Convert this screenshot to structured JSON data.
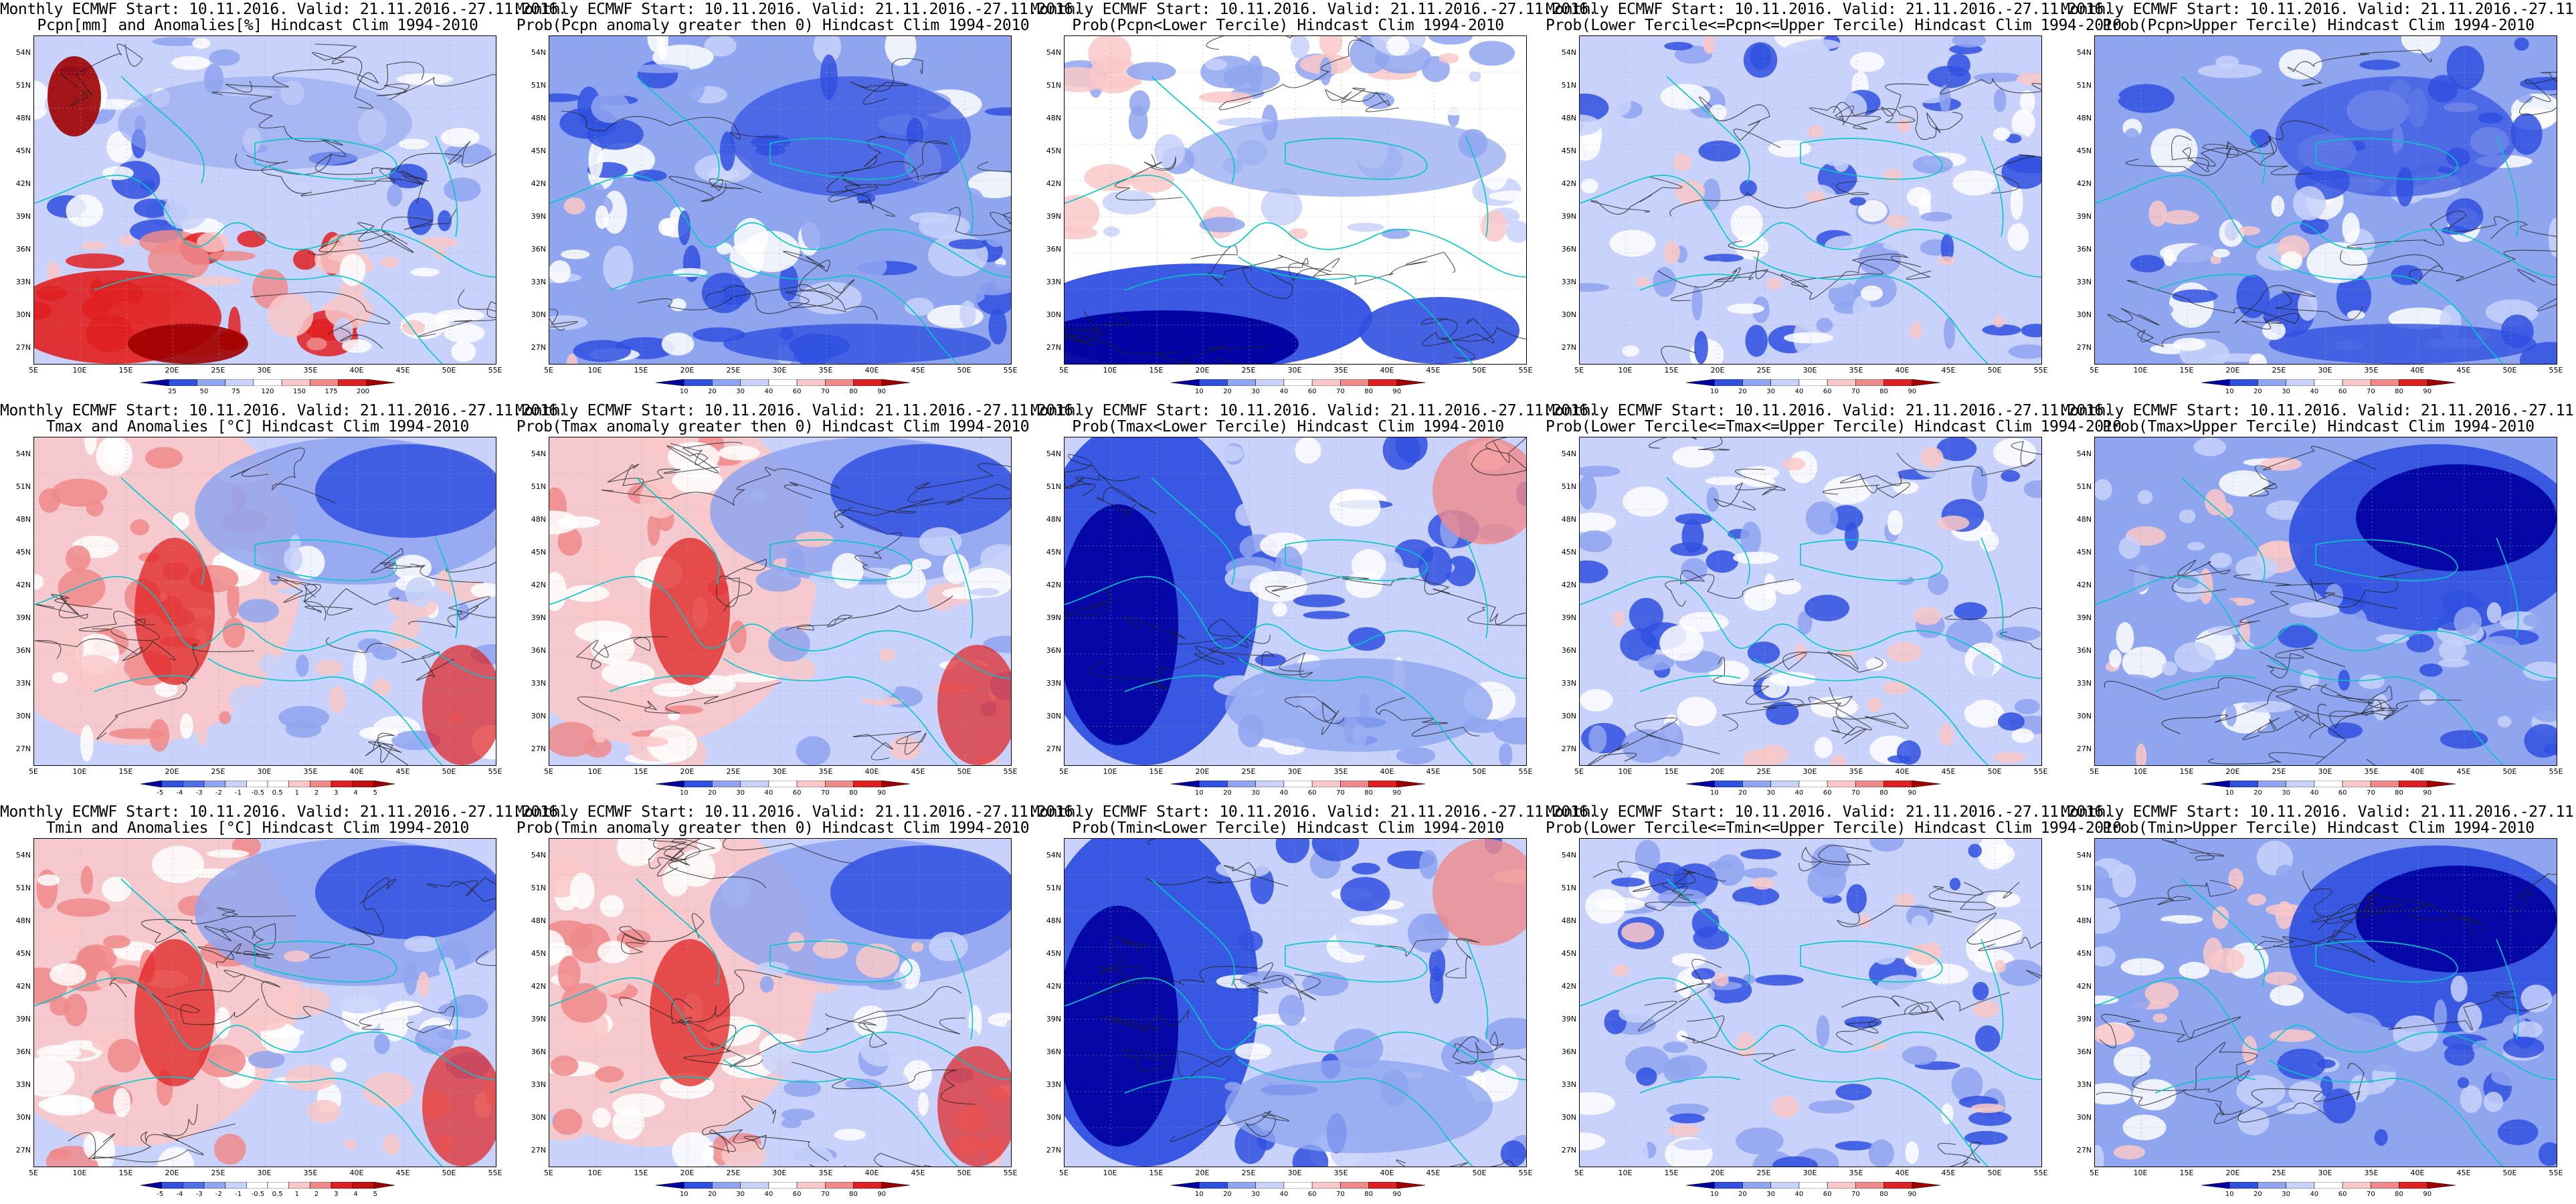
{
  "common": {
    "start_line": "Monthly ECMWF Start: 10.11.2016. Valid: 21.11.2016.-27.11.2016.",
    "lat_labels": [
      "54N",
      "51N",
      "48N",
      "45N",
      "42N",
      "39N",
      "36N",
      "33N",
      "30N",
      "27N"
    ],
    "lon_labels": [
      "5E",
      "10E",
      "15E",
      "20E",
      "25E",
      "30E",
      "35E",
      "40E",
      "45E",
      "50E",
      "55E"
    ]
  },
  "colors": {
    "deep_blue": "#0000a0",
    "blue": "#3050e0",
    "light_blue": "#8fa5f0",
    "pale_blue": "#c8d2fa",
    "white": "#ffffff",
    "pale_red": "#fac8c8",
    "light_red": "#f08a8a",
    "red": "#e02020",
    "deep_red": "#a00000",
    "coast": "#00c8c8",
    "contour": "#202020"
  },
  "colorbars": {
    "pcpn_anom": [
      "25",
      "50",
      "75",
      "120",
      "150",
      "175",
      "200"
    ],
    "temp_anom": [
      "-5",
      "-4",
      "-3",
      "-2",
      "-1",
      "-0.5",
      "0.5",
      "1",
      "2",
      "3",
      "4",
      "5"
    ],
    "prob": [
      "10",
      "20",
      "30",
      "40",
      "60",
      "70",
      "80",
      "90"
    ]
  },
  "panels": [
    {
      "id": "pcpn-anom",
      "row": 0,
      "col": 0,
      "line2": "Pcpn[mm] and Anomalies[%] Hindcast Clim 1994-2010",
      "cbar": "pcpn_anom",
      "pattern": "pcpn"
    },
    {
      "id": "pcpn-prob-gt0",
      "row": 0,
      "col": 1,
      "line2": "Prob(Pcpn anomaly greater then 0) Hindcast Clim 1994-2010",
      "cbar": "prob",
      "pattern": "blue"
    },
    {
      "id": "pcpn-prob-lower",
      "row": 0,
      "col": 2,
      "line2": "Prob(Pcpn<Lower Tercile) Hindcast Clim 1994-2010",
      "cbar": "prob",
      "pattern": "lower"
    },
    {
      "id": "pcpn-prob-middle",
      "row": 0,
      "col": 3,
      "line2": "Prob(Lower Tercile<=Pcpn<=Upper Tercile) Hindcast Clim 1994-2010",
      "cbar": "prob",
      "pattern": "middle"
    },
    {
      "id": "pcpn-prob-upper",
      "row": 0,
      "col": 4,
      "line2": "Prob(Pcpn>Upper Tercile) Hindcast Clim 1994-2010",
      "cbar": "prob",
      "pattern": "blue"
    },
    {
      "id": "tmax-anom",
      "row": 1,
      "col": 0,
      "line2": "Tmax and Anomalies [°C] Hindcast Clim 1994-2010",
      "cbar": "temp_anom",
      "pattern": "warmwest"
    },
    {
      "id": "tmax-prob-gt0",
      "row": 1,
      "col": 1,
      "line2": "Prob(Tmax anomaly greater then 0) Hindcast Clim 1994-2010",
      "cbar": "prob",
      "pattern": "warmwest"
    },
    {
      "id": "tmax-prob-lower",
      "row": 1,
      "col": 2,
      "line2": "Prob(Tmax<Lower Tercile) Hindcast Clim 1994-2010",
      "cbar": "prob",
      "pattern": "coldwest"
    },
    {
      "id": "tmax-prob-middle",
      "row": 1,
      "col": 3,
      "line2": "Prob(Lower Tercile<=Tmax<=Upper Tercile) Hindcast Clim 1994-2010",
      "cbar": "prob",
      "pattern": "middle"
    },
    {
      "id": "tmax-prob-upper",
      "row": 1,
      "col": 4,
      "line2": "Prob(Tmax>Upper Tercile) Hindcast Clim 1994-2010",
      "cbar": "prob",
      "pattern": "coldeast"
    },
    {
      "id": "tmin-anom",
      "row": 2,
      "col": 0,
      "line2": "Tmin and Anomalies [°C] Hindcast Clim 1994-2010",
      "cbar": "temp_anom",
      "pattern": "warmwest"
    },
    {
      "id": "tmin-prob-gt0",
      "row": 2,
      "col": 1,
      "line2": "Prob(Tmin anomaly greater then 0) Hindcast Clim 1994-2010",
      "cbar": "prob",
      "pattern": "warmwest"
    },
    {
      "id": "tmin-prob-lower",
      "row": 2,
      "col": 2,
      "line2": "Prob(Tmin<Lower Tercile) Hindcast Clim 1994-2010",
      "cbar": "prob",
      "pattern": "coldwest"
    },
    {
      "id": "tmin-prob-middle",
      "row": 2,
      "col": 3,
      "line2": "Prob(Lower Tercile<=Tmin<=Upper Tercile) Hindcast Clim 1994-2010",
      "cbar": "prob",
      "pattern": "middle"
    },
    {
      "id": "tmin-prob-upper",
      "row": 2,
      "col": 4,
      "line2": "Prob(Tmin>Upper Tercile) Hindcast Clim 1994-2010",
      "cbar": "prob",
      "pattern": "coldeast"
    }
  ]
}
